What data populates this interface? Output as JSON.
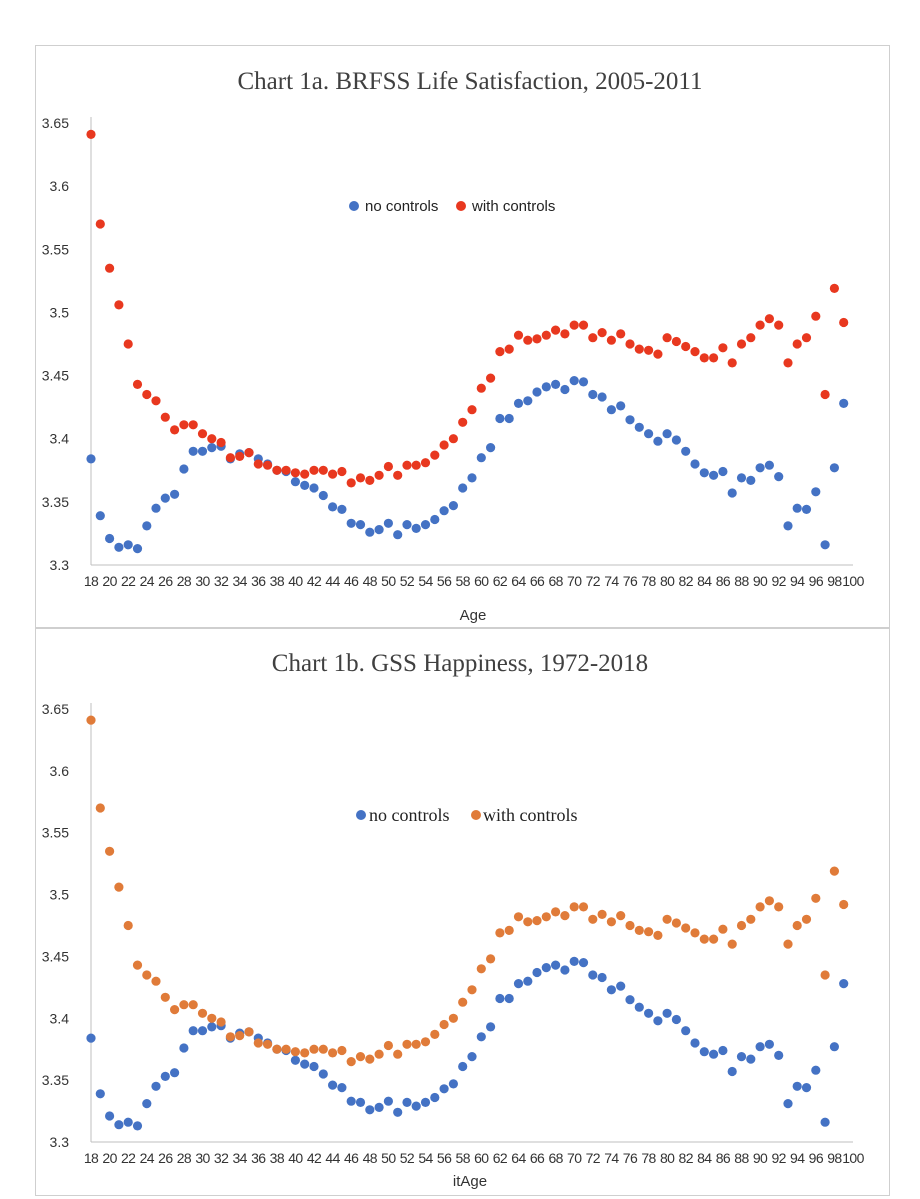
{
  "chart_data": [
    {
      "type": "scatter",
      "title": "Chart 1a.  BRFSS Life Satisfaction, 2005-2011",
      "xlabel": "Age",
      "ylabel": "",
      "ylim": [
        3.3,
        3.65
      ],
      "xlim": [
        18,
        100
      ],
      "yticks": [
        "3.3",
        "3.35",
        "3.4",
        "3.45",
        "3.5",
        "3.55",
        "3.6",
        "3.65"
      ],
      "xticks": [
        "18",
        "20",
        "22",
        "24",
        "26",
        "28",
        "30",
        "32",
        "34",
        "36",
        "38",
        "40",
        "42",
        "44",
        "46",
        "48",
        "50",
        "52",
        "54",
        "56",
        "58",
        "60",
        "62",
        "64",
        "66",
        "68",
        "70",
        "72",
        "74",
        "76",
        "78",
        "80",
        "82",
        "84",
        "86",
        "88",
        "90",
        "92",
        "94",
        "96",
        "98",
        "100"
      ],
      "grid": false,
      "legend": "top-center",
      "series": [
        {
          "name": "no controls",
          "color": "#4472C4",
          "x": [
            18,
            19,
            20,
            21,
            22,
            23,
            24,
            25,
            26,
            27,
            28,
            29,
            30,
            31,
            32,
            33,
            34,
            35,
            36,
            37,
            38,
            39,
            40,
            41,
            42,
            43,
            44,
            45,
            46,
            47,
            48,
            49,
            50,
            51,
            52,
            53,
            54,
            55,
            56,
            57,
            58,
            59,
            60,
            61,
            62,
            63,
            64,
            65,
            66,
            67,
            68,
            69,
            70,
            71,
            72,
            73,
            74,
            75,
            76,
            77,
            78,
            79,
            80,
            81,
            82,
            83,
            84,
            85,
            86,
            87,
            88,
            89,
            90,
            91,
            92,
            93,
            94,
            95,
            96,
            97,
            98,
            99
          ],
          "values": [
            3.384,
            3.339,
            3.321,
            3.314,
            3.316,
            3.313,
            3.331,
            3.345,
            3.353,
            3.356,
            3.376,
            3.39,
            3.39,
            3.393,
            3.394,
            3.384,
            3.388,
            3.389,
            3.384,
            3.38,
            3.375,
            3.374,
            3.366,
            3.363,
            3.361,
            3.355,
            3.346,
            3.344,
            3.333,
            3.332,
            3.326,
            3.328,
            3.333,
            3.324,
            3.332,
            3.329,
            3.332,
            3.336,
            3.343,
            3.347,
            3.361,
            3.369,
            3.385,
            3.393,
            3.416,
            3.416,
            3.428,
            3.43,
            3.437,
            3.441,
            3.443,
            3.439,
            3.446,
            3.445,
            3.435,
            3.433,
            3.423,
            3.426,
            3.415,
            3.409,
            3.404,
            3.398,
            3.404,
            3.399,
            3.39,
            3.38,
            3.373,
            3.371,
            3.374,
            3.357,
            3.369,
            3.367,
            3.377,
            3.379,
            3.37,
            3.331,
            3.345,
            3.344,
            3.358,
            3.316,
            3.377,
            3.428
          ]
        },
        {
          "name": "with controls",
          "color": "#E8381F",
          "x": [
            18,
            19,
            20,
            21,
            22,
            23,
            24,
            25,
            26,
            27,
            28,
            29,
            30,
            31,
            32,
            33,
            34,
            35,
            36,
            37,
            38,
            39,
            40,
            41,
            42,
            43,
            44,
            45,
            46,
            47,
            48,
            49,
            50,
            51,
            52,
            53,
            54,
            55,
            56,
            57,
            58,
            59,
            60,
            61,
            62,
            63,
            64,
            65,
            66,
            67,
            68,
            69,
            70,
            71,
            72,
            73,
            74,
            75,
            76,
            77,
            78,
            79,
            80,
            81,
            82,
            83,
            84,
            85,
            86,
            87,
            88,
            89,
            90,
            91,
            92,
            93,
            94,
            95,
            96,
            97,
            98,
            99
          ],
          "values": [
            3.641,
            3.57,
            3.535,
            3.506,
            3.475,
            3.443,
            3.435,
            3.43,
            3.417,
            3.407,
            3.411,
            3.411,
            3.404,
            3.4,
            3.397,
            3.385,
            3.386,
            3.389,
            3.38,
            3.379,
            3.375,
            3.375,
            3.373,
            3.372,
            3.375,
            3.375,
            3.372,
            3.374,
            3.365,
            3.369,
            3.367,
            3.371,
            3.378,
            3.371,
            3.379,
            3.379,
            3.381,
            3.387,
            3.395,
            3.4,
            3.413,
            3.423,
            3.44,
            3.448,
            3.469,
            3.471,
            3.482,
            3.478,
            3.479,
            3.482,
            3.486,
            3.483,
            3.49,
            3.49,
            3.48,
            3.484,
            3.478,
            3.483,
            3.475,
            3.471,
            3.47,
            3.467,
            3.48,
            3.477,
            3.473,
            3.469,
            3.464,
            3.464,
            3.472,
            3.46,
            3.475,
            3.48,
            3.49,
            3.495,
            3.49,
            3.46,
            3.475,
            3.48,
            3.497,
            3.435,
            3.519,
            3.492
          ]
        }
      ]
    },
    {
      "type": "scatter",
      "title": "Chart 1b.  GSS Happiness, 1972-2018",
      "xlabel": "itAge",
      "ylabel": "",
      "ylim": [
        3.3,
        3.65
      ],
      "xlim": [
        18,
        100
      ],
      "yticks": [
        "3.3",
        "3.35",
        "3.4",
        "3.45",
        "3.5",
        "3.55",
        "3.6",
        "3.65"
      ],
      "xticks": [
        "18",
        "20",
        "22",
        "24",
        "26",
        "28",
        "30",
        "32",
        "34",
        "36",
        "38",
        "40",
        "42",
        "44",
        "46",
        "48",
        "50",
        "52",
        "54",
        "56",
        "58",
        "60",
        "62",
        "64",
        "66",
        "68",
        "70",
        "72",
        "74",
        "76",
        "78",
        "80",
        "82",
        "84",
        "86",
        "88",
        "90",
        "92",
        "94",
        "96",
        "98",
        "100"
      ],
      "grid": false,
      "legend": "top-center",
      "series": [
        {
          "name": "no controls",
          "color": "#4472C4",
          "x": [
            18,
            19,
            20,
            21,
            22,
            23,
            24,
            25,
            26,
            27,
            28,
            29,
            30,
            31,
            32,
            33,
            34,
            35,
            36,
            37,
            38,
            39,
            40,
            41,
            42,
            43,
            44,
            45,
            46,
            47,
            48,
            49,
            50,
            51,
            52,
            53,
            54,
            55,
            56,
            57,
            58,
            59,
            60,
            61,
            62,
            63,
            64,
            65,
            66,
            67,
            68,
            69,
            70,
            71,
            72,
            73,
            74,
            75,
            76,
            77,
            78,
            79,
            80,
            81,
            82,
            83,
            84,
            85,
            86,
            87,
            88,
            89,
            90,
            91,
            92,
            93,
            94,
            95,
            96,
            97,
            98,
            99
          ],
          "values": [
            3.384,
            3.339,
            3.321,
            3.314,
            3.316,
            3.313,
            3.331,
            3.345,
            3.353,
            3.356,
            3.376,
            3.39,
            3.39,
            3.393,
            3.394,
            3.384,
            3.388,
            3.389,
            3.384,
            3.38,
            3.375,
            3.374,
            3.366,
            3.363,
            3.361,
            3.355,
            3.346,
            3.344,
            3.333,
            3.332,
            3.326,
            3.328,
            3.333,
            3.324,
            3.332,
            3.329,
            3.332,
            3.336,
            3.343,
            3.347,
            3.361,
            3.369,
            3.385,
            3.393,
            3.416,
            3.416,
            3.428,
            3.43,
            3.437,
            3.441,
            3.443,
            3.439,
            3.446,
            3.445,
            3.435,
            3.433,
            3.423,
            3.426,
            3.415,
            3.409,
            3.404,
            3.398,
            3.404,
            3.399,
            3.39,
            3.38,
            3.373,
            3.371,
            3.374,
            3.357,
            3.369,
            3.367,
            3.377,
            3.379,
            3.37,
            3.331,
            3.345,
            3.344,
            3.358,
            3.316,
            3.377,
            3.428
          ]
        },
        {
          "name": "with controls",
          "color": "#E07B39",
          "x": [
            18,
            19,
            20,
            21,
            22,
            23,
            24,
            25,
            26,
            27,
            28,
            29,
            30,
            31,
            32,
            33,
            34,
            35,
            36,
            37,
            38,
            39,
            40,
            41,
            42,
            43,
            44,
            45,
            46,
            47,
            48,
            49,
            50,
            51,
            52,
            53,
            54,
            55,
            56,
            57,
            58,
            59,
            60,
            61,
            62,
            63,
            64,
            65,
            66,
            67,
            68,
            69,
            70,
            71,
            72,
            73,
            74,
            75,
            76,
            77,
            78,
            79,
            80,
            81,
            82,
            83,
            84,
            85,
            86,
            87,
            88,
            89,
            90,
            91,
            92,
            93,
            94,
            95,
            96,
            97,
            98,
            99
          ],
          "values": [
            3.641,
            3.57,
            3.535,
            3.506,
            3.475,
            3.443,
            3.435,
            3.43,
            3.417,
            3.407,
            3.411,
            3.411,
            3.404,
            3.4,
            3.397,
            3.385,
            3.386,
            3.389,
            3.38,
            3.379,
            3.375,
            3.375,
            3.373,
            3.372,
            3.375,
            3.375,
            3.372,
            3.374,
            3.365,
            3.369,
            3.367,
            3.371,
            3.378,
            3.371,
            3.379,
            3.379,
            3.381,
            3.387,
            3.395,
            3.4,
            3.413,
            3.423,
            3.44,
            3.448,
            3.469,
            3.471,
            3.482,
            3.478,
            3.479,
            3.482,
            3.486,
            3.483,
            3.49,
            3.49,
            3.48,
            3.484,
            3.478,
            3.483,
            3.475,
            3.471,
            3.47,
            3.467,
            3.48,
            3.477,
            3.473,
            3.469,
            3.464,
            3.464,
            3.472,
            3.46,
            3.475,
            3.48,
            3.49,
            3.495,
            3.49,
            3.46,
            3.475,
            3.48,
            3.497,
            3.435,
            3.519,
            3.492
          ]
        }
      ]
    }
  ]
}
